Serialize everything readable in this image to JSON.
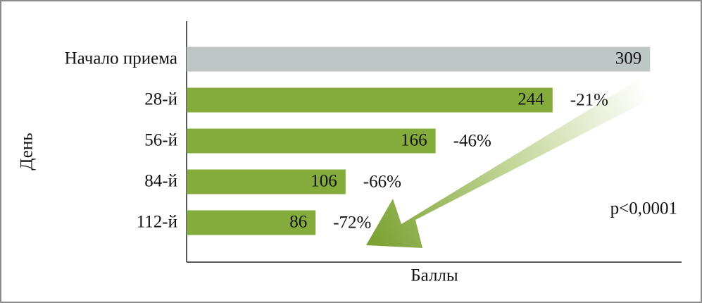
{
  "chart_data": {
    "type": "barh",
    "categories": [
      "Начало приема",
      "28-й",
      "56-й",
      "84-й",
      "112-й"
    ],
    "values": [
      309,
      244,
      166,
      106,
      86
    ],
    "colors": [
      "#bfc6c6",
      "#84ac3c",
      "#84ac3c",
      "#84ac3c",
      "#84ac3c"
    ],
    "change_labels": [
      null,
      "-21%",
      "-46%",
      "-66%",
      "-72%"
    ],
    "xlabel": "Баллы",
    "ylabel": "День",
    "annotation": "p<0,0001",
    "xlim": [
      0,
      330
    ]
  }
}
